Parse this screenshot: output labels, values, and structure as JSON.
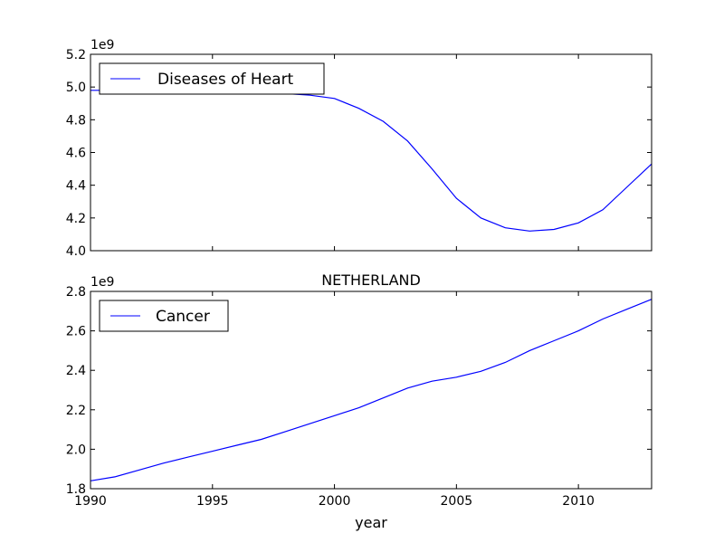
{
  "chart_data": [
    {
      "type": "line",
      "title": "",
      "xlabel": "",
      "ylabel": "",
      "offset_label": "1e9",
      "xlim": [
        1990,
        2013
      ],
      "ylim": [
        4.0,
        5.2
      ],
      "xticks": [
        1990,
        1995,
        2000,
        2005,
        2010
      ],
      "yticks": [
        "4.0",
        "4.2",
        "4.4",
        "4.6",
        "4.8",
        "5.0",
        "5.2"
      ],
      "legend_position": "top-left",
      "grid": false,
      "line_color": "#0000ff",
      "series": [
        {
          "name": "Diseases of Heart",
          "x": [
            1990,
            1991,
            1992,
            1993,
            1994,
            1995,
            1996,
            1997,
            1998,
            1999,
            2000,
            2001,
            2002,
            2003,
            2004,
            2005,
            2006,
            2007,
            2008,
            2009,
            2010,
            2011,
            2012,
            2013
          ],
          "y": [
            4.98,
            4.98,
            4.97,
            4.97,
            4.97,
            4.97,
            4.97,
            4.97,
            4.96,
            4.95,
            4.93,
            4.87,
            4.79,
            4.67,
            4.5,
            4.32,
            4.2,
            4.14,
            4.12,
            4.13,
            4.17,
            4.25,
            4.39,
            4.53
          ]
        }
      ]
    },
    {
      "type": "line",
      "title": "NETHERLAND",
      "xlabel": "year",
      "ylabel": "",
      "offset_label": "1e9",
      "xlim": [
        1990,
        2013
      ],
      "ylim": [
        1.8,
        2.8
      ],
      "xticks": [
        1990,
        1995,
        2000,
        2005,
        2010
      ],
      "xtick_labels": [
        "1990",
        "1995",
        "2000",
        "2005",
        "2010"
      ],
      "yticks": [
        "1.8",
        "2.0",
        "2.2",
        "2.4",
        "2.6",
        "2.8"
      ],
      "legend_position": "top-left",
      "grid": false,
      "line_color": "#0000ff",
      "series": [
        {
          "name": "Cancer",
          "x": [
            1990,
            1991,
            1992,
            1993,
            1994,
            1995,
            1996,
            1997,
            1998,
            1999,
            2000,
            2001,
            2002,
            2003,
            2004,
            2005,
            2006,
            2007,
            2008,
            2009,
            2010,
            2011,
            2012,
            2013
          ],
          "y": [
            1.84,
            1.86,
            1.895,
            1.93,
            1.96,
            1.99,
            2.02,
            2.05,
            2.09,
            2.13,
            2.17,
            2.21,
            2.26,
            2.31,
            2.345,
            2.365,
            2.395,
            2.44,
            2.5,
            2.55,
            2.6,
            2.66,
            2.71,
            2.76
          ]
        }
      ]
    }
  ]
}
